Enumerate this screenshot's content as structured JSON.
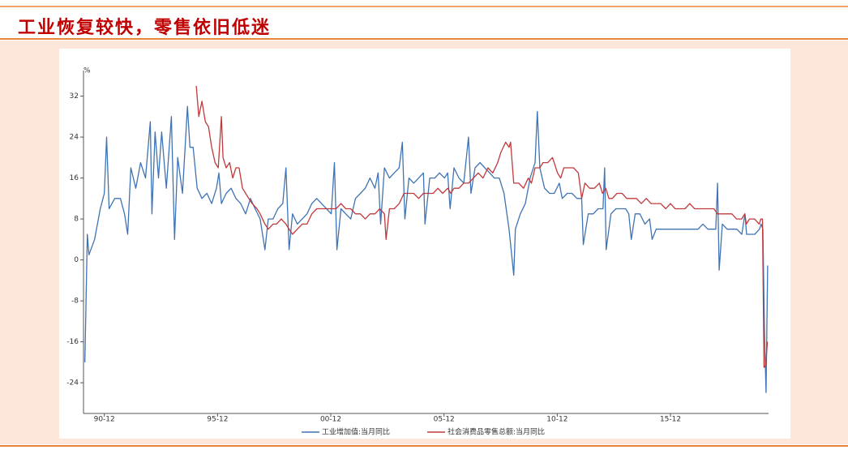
{
  "header": {
    "title": "工业恢复较快，零售依旧低迷"
  },
  "chart_data": {
    "type": "line",
    "y_label": "%",
    "xlim": [
      1990.0,
      2020.25
    ],
    "ylim": [
      -30,
      37
    ],
    "xticks": [
      {
        "value": 1990.92,
        "label": "90-12"
      },
      {
        "value": 1995.92,
        "label": "95-12"
      },
      {
        "value": 2000.92,
        "label": "00-12"
      },
      {
        "value": 2005.92,
        "label": "05-12"
      },
      {
        "value": 2010.92,
        "label": "10-12"
      },
      {
        "value": 2015.92,
        "label": "15-12"
      }
    ],
    "yticks": [
      -24,
      -16,
      -8,
      0,
      8,
      16,
      24,
      32
    ],
    "grid": false,
    "legend": "bottom",
    "series": [
      {
        "name": "工业增加值:当月同比",
        "color": "#3f73b3",
        "x": [
          1990.06,
          1990.17,
          1990.24,
          1990.49,
          1990.74,
          1990.92,
          1991.02,
          1991.13,
          1991.38,
          1991.63,
          1991.81,
          1991.95,
          1992.09,
          1992.31,
          1992.52,
          1992.74,
          1992.95,
          1993.02,
          1993.16,
          1993.31,
          1993.45,
          1993.66,
          1993.88,
          1994.02,
          1994.16,
          1994.37,
          1994.59,
          1994.7,
          1994.84,
          1995.02,
          1995.23,
          1995.45,
          1995.66,
          1995.87,
          1995.98,
          1996.09,
          1996.3,
          1996.52,
          1996.73,
          1996.94,
          1997.16,
          1997.37,
          1997.58,
          1997.8,
          1998.01,
          1998.16,
          1998.37,
          1998.58,
          1998.8,
          1998.94,
          1999.08,
          1999.23,
          1999.44,
          1999.66,
          1999.87,
          2000.08,
          2000.3,
          2000.51,
          2000.73,
          2000.94,
          2001.08,
          2001.19,
          2001.37,
          2001.58,
          2001.8,
          2002.01,
          2002.23,
          2002.44,
          2002.65,
          2002.87,
          2003.01,
          2003.12,
          2003.29,
          2003.51,
          2003.72,
          2003.94,
          2004.08,
          2004.19,
          2004.37,
          2004.58,
          2004.8,
          2005.01,
          2005.08,
          2005.29,
          2005.51,
          2005.72,
          2005.94,
          2006.08,
          2006.19,
          2006.36,
          2006.58,
          2006.79,
          2007.0,
          2007.11,
          2007.29,
          2007.51,
          2007.72,
          2007.94,
          2008.14,
          2008.36,
          2008.57,
          2008.79,
          2009.0,
          2009.07,
          2009.29,
          2009.51,
          2009.72,
          2009.94,
          2010.04,
          2010.15,
          2010.36,
          2010.58,
          2010.79,
          2011.01,
          2011.14,
          2011.36,
          2011.57,
          2011.79,
          2012.0,
          2012.07,
          2012.29,
          2012.51,
          2012.72,
          2012.94,
          2013.01,
          2013.08,
          2013.29,
          2013.51,
          2013.72,
          2013.94,
          2014.08,
          2014.19,
          2014.36,
          2014.57,
          2014.79,
          2015.0,
          2015.11,
          2015.29,
          2015.5,
          2015.71,
          2015.92,
          2016.14,
          2016.35,
          2016.57,
          2016.78,
          2017.0,
          2017.14,
          2017.35,
          2017.57,
          2017.78,
          2017.92,
          2018.0,
          2018.07,
          2018.21,
          2018.42,
          2018.64,
          2018.85,
          2019.07,
          2019.21,
          2019.28,
          2019.43,
          2019.64,
          2019.85,
          2019.92,
          2020.0,
          2020.07,
          2020.14,
          2020.21
        ],
        "values": [
          -20,
          5,
          1,
          4,
          10,
          13,
          24,
          10,
          12,
          12,
          9,
          5,
          18,
          14,
          19,
          16,
          27,
          9,
          25,
          16,
          25,
          14,
          28,
          4,
          20,
          13,
          30,
          22,
          22,
          14,
          12,
          13,
          11,
          14,
          17,
          11,
          13,
          14,
          12,
          11,
          9,
          12,
          10,
          8,
          2,
          8,
          8,
          10,
          11,
          18,
          2,
          9,
          7,
          8,
          9,
          11,
          12,
          11,
          10,
          9,
          19,
          2,
          10,
          9,
          8,
          12,
          13,
          14,
          16,
          14,
          17,
          7,
          18,
          16,
          17,
          18,
          23,
          8,
          16,
          15,
          16,
          17,
          7,
          16,
          16,
          17,
          16,
          17,
          10,
          18,
          16,
          15,
          24,
          13,
          18,
          19,
          18,
          17,
          16,
          16,
          13,
          6,
          -3,
          6,
          9,
          11,
          16,
          19,
          29,
          18,
          14,
          13,
          13,
          15,
          12,
          13,
          13,
          12,
          12,
          3,
          9,
          9,
          10,
          10,
          18,
          2,
          9,
          10,
          10,
          10,
          9,
          4,
          9,
          9,
          7,
          8,
          4,
          6,
          6,
          6,
          6,
          6,
          6,
          6,
          6,
          6,
          6,
          7,
          6,
          6,
          6,
          15,
          -2,
          7,
          6,
          6,
          6,
          5,
          9,
          5,
          5,
          5,
          6,
          7,
          6,
          -14,
          -25.9,
          -1.1
        ]
      },
      {
        "name": "社会消费品零售总额:当月同比",
        "color": "#c0393b",
        "x": [
          1994.98,
          1995.09,
          1995.23,
          1995.38,
          1995.52,
          1995.66,
          1995.81,
          1995.95,
          1996.09,
          1996.16,
          1996.3,
          1996.45,
          1996.59,
          1996.73,
          1996.87,
          1997.02,
          1997.16,
          1997.3,
          1997.45,
          1997.66,
          1997.8,
          1998.01,
          1998.16,
          1998.37,
          1998.52,
          1998.73,
          1998.94,
          1999.08,
          1999.23,
          1999.44,
          1999.66,
          1999.87,
          2000.08,
          2000.3,
          2000.51,
          2000.73,
          2000.94,
          2001.15,
          2001.37,
          2001.58,
          2001.8,
          2002.01,
          2002.23,
          2002.44,
          2002.65,
          2002.87,
          2003.08,
          2003.29,
          2003.36,
          2003.51,
          2003.72,
          2003.94,
          2004.15,
          2004.37,
          2004.58,
          2004.8,
          2005.01,
          2005.22,
          2005.44,
          2005.65,
          2005.86,
          2006.08,
          2006.22,
          2006.36,
          2006.58,
          2006.79,
          2007.0,
          2007.22,
          2007.43,
          2007.64,
          2007.86,
          2008.07,
          2008.29,
          2008.43,
          2008.64,
          2008.79,
          2008.86,
          2009.0,
          2009.22,
          2009.43,
          2009.64,
          2009.78,
          2009.94,
          2010.15,
          2010.29,
          2010.5,
          2010.71,
          2010.93,
          2011.07,
          2011.21,
          2011.43,
          2011.64,
          2011.85,
          2012.0,
          2012.14,
          2012.35,
          2012.56,
          2012.78,
          2012.92,
          2013.06,
          2013.2,
          2013.35,
          2013.56,
          2013.78,
          2013.99,
          2014.21,
          2014.42,
          2014.63,
          2014.85,
          2015.06,
          2015.28,
          2015.49,
          2015.71,
          2015.92,
          2016.13,
          2016.35,
          2016.56,
          2016.77,
          2016.99,
          2017.2,
          2017.42,
          2017.63,
          2017.84,
          2017.99,
          2018.2,
          2018.41,
          2018.63,
          2018.84,
          2019.06,
          2019.2,
          2019.27,
          2019.41,
          2019.63,
          2019.84,
          2019.91,
          2019.98,
          2020.05,
          2020.13,
          2020.2
        ],
        "values": [
          34,
          28,
          31,
          27,
          26,
          22,
          19,
          18,
          28,
          20,
          18,
          19,
          16,
          18,
          18,
          14,
          13,
          12,
          11,
          10,
          9,
          7,
          6,
          7,
          7,
          8,
          7,
          6,
          5,
          6,
          7,
          7,
          9,
          10,
          10,
          10,
          10,
          10,
          11,
          10,
          10,
          9,
          9,
          8,
          9,
          9,
          10,
          9,
          4,
          10,
          10,
          11,
          13,
          13,
          13,
          12,
          13,
          13,
          13,
          14,
          13,
          14,
          13,
          14,
          14,
          15,
          15,
          16,
          17,
          16,
          18,
          17,
          19,
          21,
          23,
          22,
          23,
          15,
          15,
          14,
          16,
          15,
          18,
          18,
          19,
          19,
          20,
          17,
          16,
          18,
          18,
          18,
          17,
          12,
          15,
          14,
          14,
          15,
          13,
          14,
          12,
          12,
          13,
          13,
          12,
          12,
          12,
          11,
          12,
          11,
          11,
          11,
          10,
          11,
          10,
          10,
          10,
          11,
          10,
          10,
          10,
          10,
          10,
          9,
          9,
          9,
          9,
          8,
          8,
          9,
          7,
          8,
          8,
          7,
          8,
          8,
          -21,
          -20.5,
          -16
        ]
      }
    ]
  }
}
